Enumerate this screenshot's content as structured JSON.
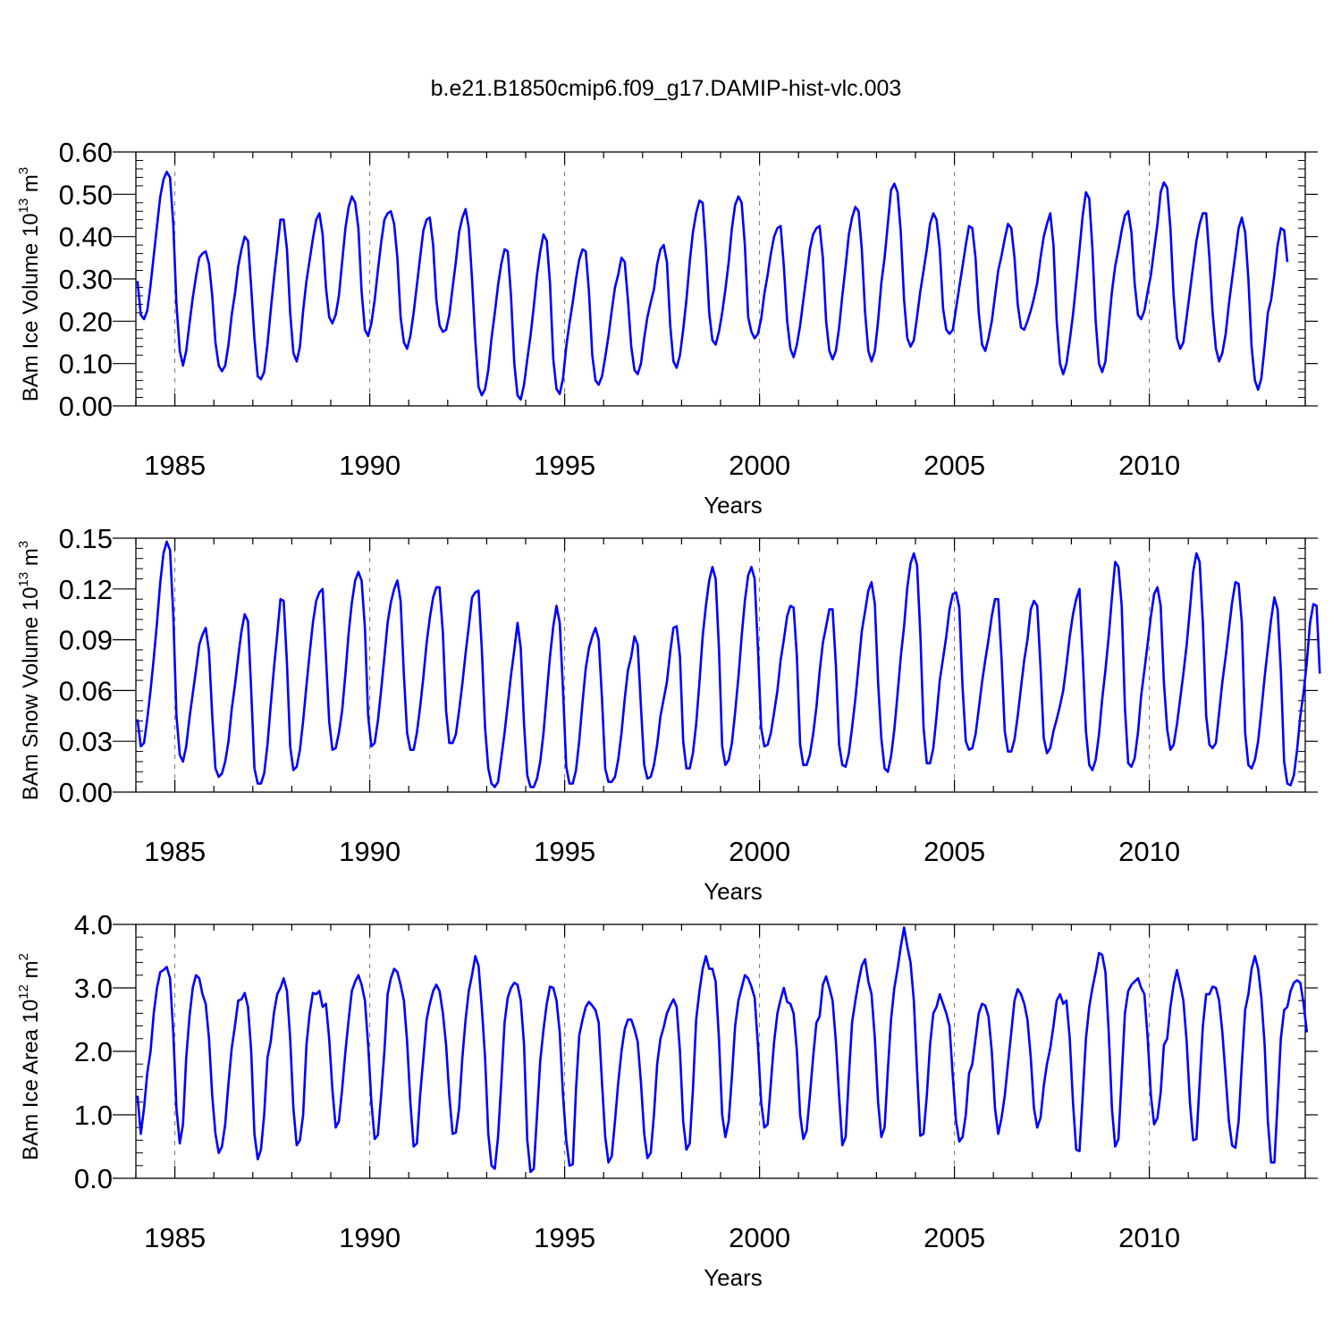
{
  "title": "b.e21.B1850cmip6.f09_g17.DAMIP-hist-vlc.003",
  "colors": {
    "line": "#0000ff",
    "frame": "#000000",
    "grid": "#777777"
  },
  "chart_data": [
    {
      "type": "line",
      "ylabel": {
        "text": "BAm Ice Volume 10",
        "exp": "13",
        "unit": " m",
        "unit_exp": "3"
      },
      "xlabel": "Years",
      "xlim": [
        1984.0,
        2014.0
      ],
      "ylim": [
        0.0,
        0.6
      ],
      "xticks": [
        1985,
        1990,
        1995,
        2000,
        2005,
        2010
      ],
      "xtick_labels": [
        "1985",
        "1990",
        "1995",
        "2000",
        "2005",
        "2010"
      ],
      "yticks": [
        0.0,
        0.1,
        0.2,
        0.3,
        0.4,
        0.5,
        0.6
      ],
      "ytick_labels": [
        "0.00",
        "0.10",
        "0.20",
        "0.30",
        "0.40",
        "0.50",
        "0.60"
      ],
      "grid": "dashed vertical at major x ticks",
      "x_start": 1984.0417,
      "x_step": 0.083333,
      "values": [
        0.295,
        0.215,
        0.205,
        0.225,
        0.285,
        0.355,
        0.425,
        0.495,
        0.535,
        0.553,
        0.54,
        0.43,
        0.24,
        0.13,
        0.095,
        0.13,
        0.195,
        0.255,
        0.305,
        0.35,
        0.36,
        0.365,
        0.335,
        0.26,
        0.15,
        0.095,
        0.082,
        0.095,
        0.145,
        0.215,
        0.265,
        0.33,
        0.37,
        0.4,
        0.39,
        0.28,
        0.16,
        0.07,
        0.063,
        0.08,
        0.145,
        0.225,
        0.3,
        0.37,
        0.44,
        0.44,
        0.37,
        0.22,
        0.125,
        0.105,
        0.14,
        0.225,
        0.295,
        0.345,
        0.395,
        0.44,
        0.455,
        0.405,
        0.28,
        0.21,
        0.195,
        0.215,
        0.26,
        0.34,
        0.42,
        0.47,
        0.495,
        0.48,
        0.42,
        0.27,
        0.18,
        0.165,
        0.195,
        0.25,
        0.32,
        0.385,
        0.44,
        0.455,
        0.46,
        0.43,
        0.35,
        0.21,
        0.15,
        0.135,
        0.165,
        0.22,
        0.285,
        0.35,
        0.415,
        0.44,
        0.445,
        0.38,
        0.25,
        0.19,
        0.175,
        0.18,
        0.215,
        0.28,
        0.34,
        0.41,
        0.445,
        0.465,
        0.42,
        0.3,
        0.155,
        0.045,
        0.025,
        0.04,
        0.085,
        0.16,
        0.22,
        0.285,
        0.335,
        0.37,
        0.365,
        0.26,
        0.1,
        0.025,
        0.015,
        0.05,
        0.11,
        0.165,
        0.235,
        0.31,
        0.365,
        0.405,
        0.39,
        0.29,
        0.11,
        0.04,
        0.028,
        0.065,
        0.14,
        0.195,
        0.245,
        0.3,
        0.345,
        0.37,
        0.365,
        0.27,
        0.12,
        0.06,
        0.05,
        0.07,
        0.115,
        0.165,
        0.225,
        0.28,
        0.31,
        0.35,
        0.34,
        0.25,
        0.14,
        0.085,
        0.075,
        0.1,
        0.16,
        0.21,
        0.245,
        0.275,
        0.335,
        0.37,
        0.38,
        0.34,
        0.19,
        0.105,
        0.09,
        0.12,
        0.18,
        0.25,
        0.34,
        0.41,
        0.455,
        0.485,
        0.48,
        0.37,
        0.22,
        0.155,
        0.145,
        0.175,
        0.22,
        0.275,
        0.34,
        0.42,
        0.475,
        0.495,
        0.48,
        0.38,
        0.21,
        0.175,
        0.16,
        0.17,
        0.205,
        0.265,
        0.31,
        0.36,
        0.4,
        0.42,
        0.425,
        0.33,
        0.2,
        0.135,
        0.115,
        0.145,
        0.19,
        0.25,
        0.31,
        0.37,
        0.405,
        0.42,
        0.425,
        0.35,
        0.2,
        0.13,
        0.11,
        0.13,
        0.185,
        0.26,
        0.33,
        0.405,
        0.445,
        0.47,
        0.46,
        0.37,
        0.22,
        0.13,
        0.105,
        0.13,
        0.2,
        0.29,
        0.35,
        0.43,
        0.51,
        0.525,
        0.505,
        0.41,
        0.25,
        0.16,
        0.14,
        0.155,
        0.21,
        0.27,
        0.32,
        0.37,
        0.43,
        0.455,
        0.44,
        0.37,
        0.23,
        0.18,
        0.17,
        0.18,
        0.23,
        0.28,
        0.33,
        0.38,
        0.425,
        0.42,
        0.35,
        0.22,
        0.145,
        0.13,
        0.16,
        0.2,
        0.26,
        0.32,
        0.355,
        0.395,
        0.43,
        0.42,
        0.35,
        0.24,
        0.185,
        0.18,
        0.2,
        0.225,
        0.255,
        0.29,
        0.35,
        0.4,
        0.43,
        0.455,
        0.38,
        0.2,
        0.1,
        0.075,
        0.1,
        0.155,
        0.215,
        0.29,
        0.37,
        0.45,
        0.505,
        0.49,
        0.37,
        0.2,
        0.1,
        0.08,
        0.105,
        0.19,
        0.27,
        0.33,
        0.37,
        0.415,
        0.45,
        0.46,
        0.41,
        0.29,
        0.215,
        0.205,
        0.225,
        0.27,
        0.31,
        0.37,
        0.43,
        0.505,
        0.528,
        0.515,
        0.42,
        0.26,
        0.16,
        0.135,
        0.15,
        0.21,
        0.27,
        0.33,
        0.39,
        0.43,
        0.455,
        0.455,
        0.35,
        0.22,
        0.135,
        0.105,
        0.125,
        0.17,
        0.24,
        0.3,
        0.36,
        0.42,
        0.445,
        0.41,
        0.3,
        0.14,
        0.06,
        0.038,
        0.065,
        0.14,
        0.22,
        0.25,
        0.31,
        0.38,
        0.42,
        0.415,
        0.34
      ]
    },
    {
      "type": "line",
      "ylabel": {
        "text": "BAm Snow Volume 10",
        "exp": "13",
        "unit": " m",
        "unit_exp": "3"
      },
      "xlabel": "Years",
      "xlim": [
        1984.0,
        2014.0
      ],
      "ylim": [
        0.0,
        0.15
      ],
      "xticks": [
        1985,
        1990,
        1995,
        2000,
        2005,
        2010
      ],
      "xtick_labels": [
        "1985",
        "1990",
        "1995",
        "2000",
        "2005",
        "2010"
      ],
      "yticks": [
        0.0,
        0.03,
        0.06,
        0.09,
        0.12,
        0.15
      ],
      "ytick_labels": [
        "0.00",
        "0.03",
        "0.06",
        "0.09",
        "0.12",
        "0.15"
      ],
      "grid": "dashed vertical at major x ticks",
      "x_start": 1984.0417,
      "x_step": 0.083333,
      "values": [
        0.043,
        0.027,
        0.029,
        0.043,
        0.06,
        0.079,
        0.1,
        0.124,
        0.141,
        0.148,
        0.143,
        0.105,
        0.045,
        0.022,
        0.018,
        0.027,
        0.044,
        0.058,
        0.072,
        0.087,
        0.093,
        0.097,
        0.083,
        0.045,
        0.014,
        0.009,
        0.011,
        0.018,
        0.03,
        0.049,
        0.063,
        0.08,
        0.095,
        0.105,
        0.101,
        0.06,
        0.014,
        0.005,
        0.005,
        0.011,
        0.028,
        0.051,
        0.073,
        0.093,
        0.114,
        0.113,
        0.076,
        0.027,
        0.013,
        0.015,
        0.025,
        0.042,
        0.063,
        0.082,
        0.1,
        0.113,
        0.118,
        0.12,
        0.08,
        0.042,
        0.025,
        0.026,
        0.035,
        0.048,
        0.07,
        0.094,
        0.112,
        0.125,
        0.13,
        0.125,
        0.097,
        0.045,
        0.027,
        0.029,
        0.042,
        0.06,
        0.08,
        0.1,
        0.112,
        0.12,
        0.125,
        0.113,
        0.069,
        0.035,
        0.025,
        0.025,
        0.035,
        0.05,
        0.068,
        0.088,
        0.103,
        0.115,
        0.121,
        0.121,
        0.094,
        0.048,
        0.029,
        0.029,
        0.034,
        0.048,
        0.064,
        0.082,
        0.098,
        0.115,
        0.118,
        0.119,
        0.085,
        0.038,
        0.014,
        0.005,
        0.003,
        0.006,
        0.02,
        0.035,
        0.052,
        0.069,
        0.084,
        0.1,
        0.085,
        0.04,
        0.01,
        0.003,
        0.003,
        0.008,
        0.018,
        0.035,
        0.058,
        0.08,
        0.098,
        0.11,
        0.1,
        0.06,
        0.015,
        0.005,
        0.005,
        0.013,
        0.03,
        0.053,
        0.073,
        0.085,
        0.092,
        0.097,
        0.09,
        0.055,
        0.014,
        0.006,
        0.006,
        0.009,
        0.019,
        0.035,
        0.055,
        0.072,
        0.08,
        0.092,
        0.087,
        0.05,
        0.016,
        0.008,
        0.009,
        0.016,
        0.028,
        0.045,
        0.055,
        0.065,
        0.083,
        0.097,
        0.098,
        0.08,
        0.03,
        0.014,
        0.014,
        0.023,
        0.04,
        0.065,
        0.092,
        0.11,
        0.125,
        0.133,
        0.126,
        0.085,
        0.027,
        0.016,
        0.019,
        0.029,
        0.047,
        0.068,
        0.092,
        0.113,
        0.128,
        0.133,
        0.126,
        0.085,
        0.038,
        0.027,
        0.028,
        0.035,
        0.047,
        0.06,
        0.078,
        0.09,
        0.104,
        0.11,
        0.109,
        0.08,
        0.028,
        0.016,
        0.016,
        0.022,
        0.034,
        0.05,
        0.071,
        0.088,
        0.098,
        0.108,
        0.108,
        0.075,
        0.028,
        0.016,
        0.015,
        0.023,
        0.038,
        0.055,
        0.075,
        0.095,
        0.107,
        0.119,
        0.124,
        0.111,
        0.065,
        0.032,
        0.014,
        0.012,
        0.021,
        0.037,
        0.058,
        0.08,
        0.098,
        0.121,
        0.135,
        0.141,
        0.134,
        0.094,
        0.038,
        0.017,
        0.017,
        0.026,
        0.045,
        0.066,
        0.079,
        0.092,
        0.108,
        0.117,
        0.118,
        0.109,
        0.062,
        0.03,
        0.025,
        0.026,
        0.034,
        0.049,
        0.065,
        0.078,
        0.09,
        0.104,
        0.114,
        0.114,
        0.079,
        0.036,
        0.024,
        0.024,
        0.031,
        0.045,
        0.062,
        0.078,
        0.09,
        0.108,
        0.113,
        0.11,
        0.074,
        0.032,
        0.023,
        0.026,
        0.036,
        0.043,
        0.051,
        0.06,
        0.075,
        0.092,
        0.105,
        0.114,
        0.12,
        0.08,
        0.036,
        0.016,
        0.013,
        0.019,
        0.034,
        0.055,
        0.072,
        0.092,
        0.115,
        0.136,
        0.133,
        0.11,
        0.05,
        0.017,
        0.015,
        0.02,
        0.035,
        0.057,
        0.072,
        0.088,
        0.104,
        0.117,
        0.121,
        0.11,
        0.065,
        0.037,
        0.025,
        0.028,
        0.04,
        0.055,
        0.07,
        0.087,
        0.108,
        0.13,
        0.141,
        0.136,
        0.1,
        0.045,
        0.028,
        0.026,
        0.029,
        0.047,
        0.065,
        0.08,
        0.096,
        0.112,
        0.124,
        0.123,
        0.1,
        0.035,
        0.016,
        0.014,
        0.019,
        0.03,
        0.048,
        0.068,
        0.085,
        0.102,
        0.115,
        0.108,
        0.072,
        0.018,
        0.005,
        0.004,
        0.01,
        0.025,
        0.045,
        0.059,
        0.077,
        0.1,
        0.111,
        0.11,
        0.07
      ]
    },
    {
      "type": "line",
      "ylabel": {
        "text": "BAm Ice Area 10",
        "exp": "12",
        "unit": " m",
        "unit_exp": "2"
      },
      "xlabel": "Years",
      "xlim": [
        1984.0,
        2014.0
      ],
      "ylim": [
        0.0,
        4.0
      ],
      "xticks": [
        1985,
        1990,
        1995,
        2000,
        2005,
        2010
      ],
      "xtick_labels": [
        "1985",
        "1990",
        "1995",
        "2000",
        "2005",
        "2010"
      ],
      "yticks": [
        0.0,
        1.0,
        2.0,
        3.0,
        4.0
      ],
      "ytick_labels": [
        "0.0",
        "1.0",
        "2.0",
        "3.0",
        "4.0"
      ],
      "grid": "dashed vertical at major x ticks",
      "x_start": 1984.0417,
      "x_step": 0.083333,
      "values": [
        1.3,
        0.7,
        1.1,
        1.65,
        2.0,
        2.6,
        3.0,
        3.25,
        3.28,
        3.33,
        3.15,
        2.3,
        1.1,
        0.55,
        0.85,
        1.9,
        2.55,
        3.0,
        3.2,
        3.15,
        2.9,
        2.75,
        2.2,
        1.3,
        0.7,
        0.4,
        0.5,
        0.85,
        1.5,
        2.05,
        2.4,
        2.8,
        2.82,
        2.92,
        2.7,
        2.0,
        0.7,
        0.3,
        0.45,
        1.0,
        1.9,
        2.15,
        2.6,
        2.9,
        3.0,
        3.15,
        2.95,
        2.2,
        1.1,
        0.52,
        0.6,
        1.0,
        2.1,
        2.6,
        2.92,
        2.9,
        2.95,
        2.7,
        2.75,
        2.2,
        1.4,
        0.8,
        0.9,
        1.4,
        2.0,
        2.5,
        2.95,
        3.1,
        3.2,
        3.05,
        2.8,
        2.1,
        1.2,
        0.62,
        0.68,
        1.3,
        2.0,
        2.9,
        3.15,
        3.3,
        3.25,
        3.05,
        2.8,
        2.15,
        1.2,
        0.5,
        0.55,
        1.3,
        1.9,
        2.5,
        2.75,
        2.95,
        3.05,
        2.95,
        2.6,
        2.1,
        1.3,
        0.7,
        0.72,
        1.1,
        1.9,
        2.5,
        2.95,
        3.2,
        3.5,
        3.35,
        2.7,
        1.9,
        0.7,
        0.2,
        0.15,
        0.65,
        1.5,
        2.45,
        2.85,
        3.0,
        3.08,
        3.05,
        2.8,
        2.1,
        0.6,
        0.1,
        0.15,
        1.0,
        1.85,
        2.35,
        2.75,
        3.02,
        3.0,
        2.8,
        2.3,
        1.3,
        0.6,
        0.2,
        0.22,
        1.4,
        2.25,
        2.5,
        2.7,
        2.78,
        2.72,
        2.65,
        2.45,
        1.5,
        0.65,
        0.25,
        0.35,
        0.9,
        1.5,
        2.0,
        2.35,
        2.5,
        2.5,
        2.35,
        2.15,
        1.5,
        0.7,
        0.32,
        0.4,
        1.0,
        1.8,
        2.2,
        2.38,
        2.6,
        2.72,
        2.82,
        2.7,
        2.0,
        0.9,
        0.45,
        0.55,
        1.4,
        2.5,
        2.95,
        3.3,
        3.5,
        3.3,
        3.3,
        3.1,
        2.2,
        1.0,
        0.65,
        0.9,
        1.6,
        2.4,
        2.8,
        3.0,
        3.2,
        3.15,
        3.02,
        2.85,
        2.1,
        1.2,
        0.8,
        0.85,
        1.5,
        2.15,
        2.6,
        2.82,
        3.0,
        2.78,
        2.75,
        2.6,
        2.0,
        1.0,
        0.62,
        0.75,
        1.3,
        1.9,
        2.45,
        2.55,
        3.05,
        3.18,
        3.0,
        2.8,
        2.15,
        1.3,
        0.52,
        0.65,
        1.6,
        2.45,
        2.8,
        3.1,
        3.35,
        3.45,
        3.1,
        2.9,
        2.2,
        1.2,
        0.65,
        0.8,
        1.7,
        2.5,
        3.0,
        3.3,
        3.65,
        3.95,
        3.65,
        3.4,
        2.8,
        1.7,
        0.67,
        0.7,
        1.3,
        2.1,
        2.6,
        2.7,
        2.9,
        2.75,
        2.6,
        2.4,
        1.6,
        0.9,
        0.58,
        0.65,
        1.0,
        1.65,
        1.8,
        2.2,
        2.6,
        2.75,
        2.72,
        2.55,
        2.0,
        1.1,
        0.7,
        0.95,
        1.3,
        1.8,
        2.3,
        2.8,
        2.98,
        2.9,
        2.75,
        2.5,
        1.9,
        1.1,
        0.8,
        0.95,
        1.45,
        1.8,
        2.05,
        2.4,
        2.8,
        2.9,
        2.75,
        2.8,
        2.2,
        1.2,
        0.45,
        0.43,
        1.3,
        2.2,
        2.7,
        3.0,
        3.25,
        3.55,
        3.52,
        3.25,
        2.3,
        1.1,
        0.5,
        0.62,
        1.6,
        2.6,
        2.95,
        3.05,
        3.1,
        3.15,
        3.0,
        2.9,
        2.2,
        1.3,
        0.85,
        0.95,
        1.35,
        2.1,
        2.2,
        2.7,
        3.05,
        3.28,
        3.05,
        2.8,
        2.15,
        1.2,
        0.6,
        0.62,
        1.5,
        2.4,
        2.9,
        2.9,
        3.02,
        3.0,
        2.8,
        2.3,
        1.6,
        0.9,
        0.52,
        0.48,
        0.9,
        1.8,
        2.65,
        2.9,
        3.3,
        3.5,
        3.3,
        2.85,
        2.1,
        0.9,
        0.25,
        0.25,
        1.2,
        2.2,
        2.65,
        2.7,
        2.95,
        3.08,
        3.12,
        3.08,
        2.75,
        2.3
      ]
    }
  ]
}
